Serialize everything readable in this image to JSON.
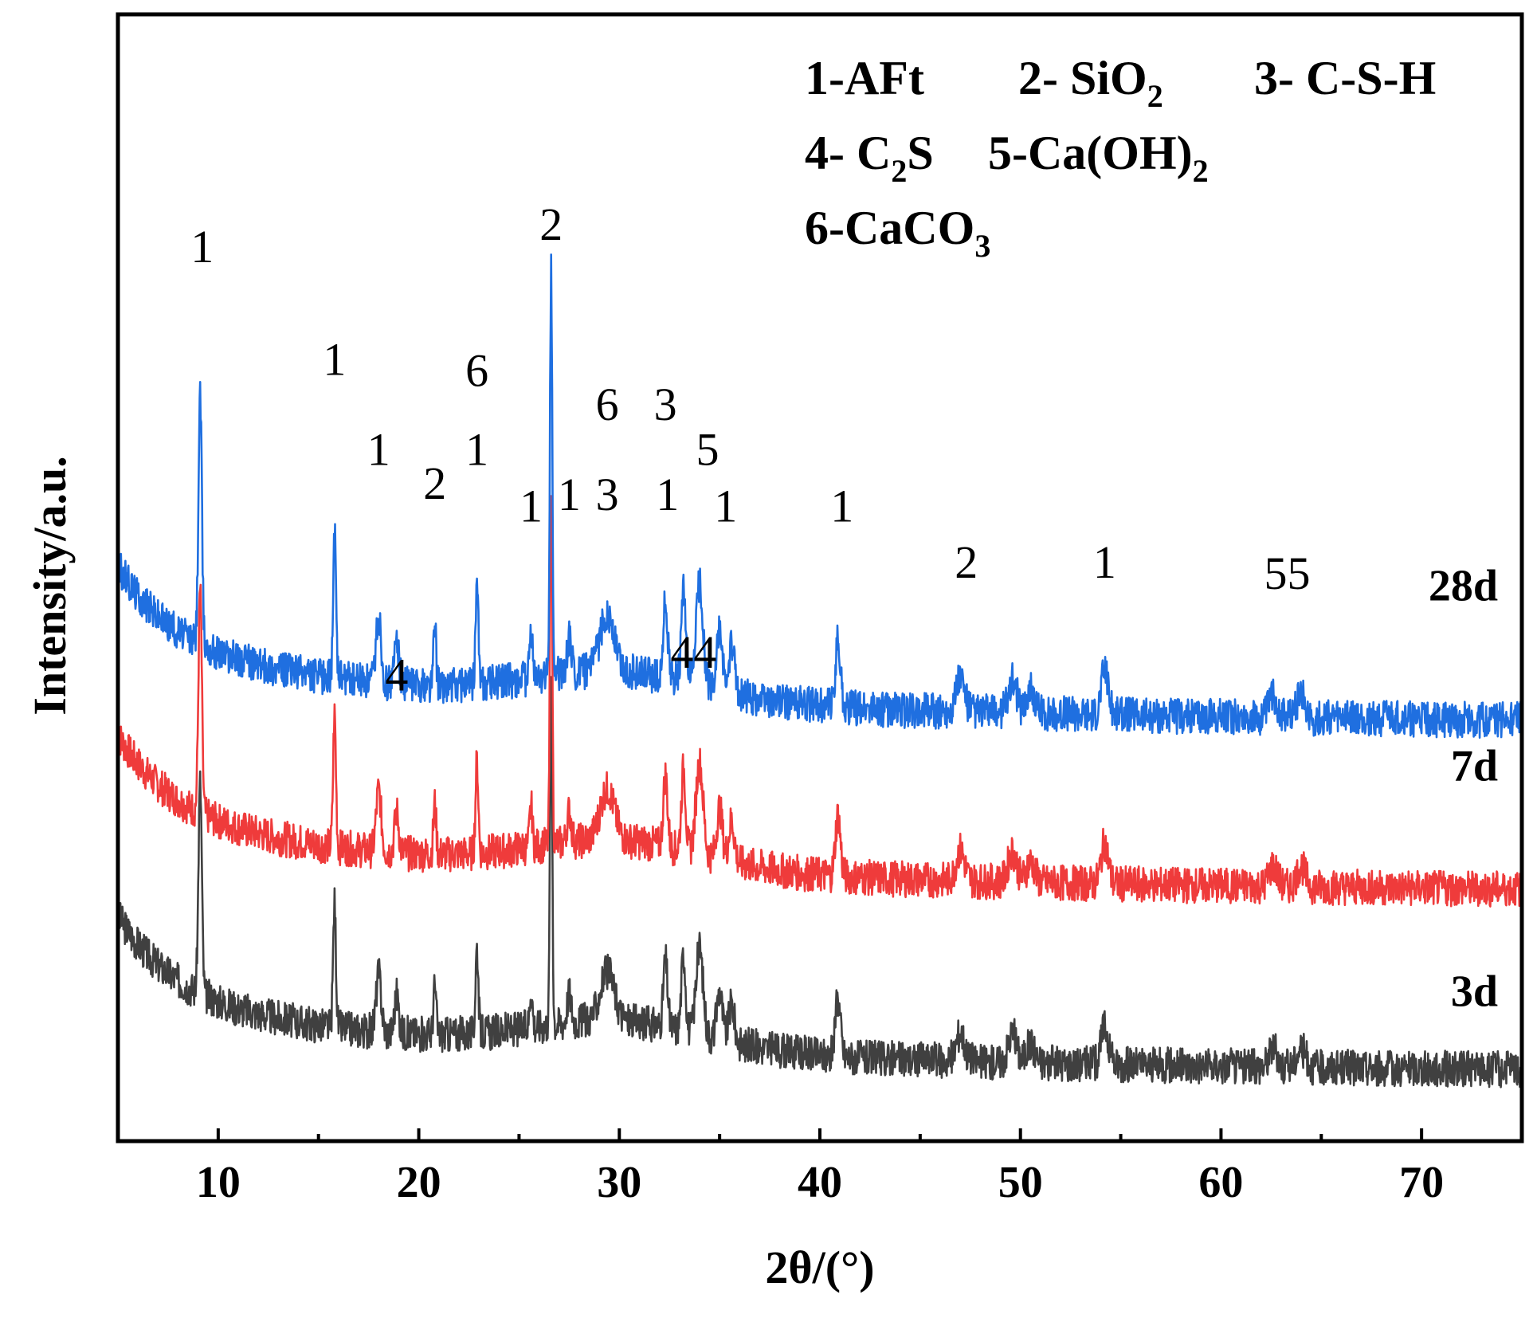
{
  "chart_data": {
    "type": "line",
    "title": "",
    "xlabel": "2θ/(°)",
    "ylabel": "Intensity/a.u.",
    "xlim": [
      5,
      75
    ],
    "ylim": [
      0,
      100
    ],
    "y_ticks_visible": false,
    "x_ticks": [
      10,
      20,
      30,
      40,
      50,
      60,
      70
    ],
    "x_tick_labels": [
      "10",
      "20",
      "30",
      "40",
      "50",
      "60",
      "70"
    ],
    "grid": false,
    "legend_position": "top-right",
    "legend": [
      {
        "num": "1",
        "sep": "-",
        "phase": "AFt"
      },
      {
        "num": "2",
        "sep": "- ",
        "phase": "SiO",
        "sub": "2"
      },
      {
        "num": "3",
        "sep": "- ",
        "phase": "C-S-H"
      },
      {
        "num": "4",
        "sep": "- ",
        "phase": "C",
        "sub": "2",
        "after": "S"
      },
      {
        "num": "5",
        "sep": "-",
        "phase": "Ca(OH)",
        "sub": "2"
      },
      {
        "num": "6",
        "sep": "-",
        "phase": "CaCO",
        "sub": "3"
      }
    ],
    "background_peaks": [
      {
        "x": 9.1,
        "h": 22,
        "w": 0.12
      },
      {
        "x": 15.8,
        "h": 13,
        "w": 0.1
      },
      {
        "x": 18.0,
        "h": 6,
        "w": 0.18
      },
      {
        "x": 18.9,
        "h": 4,
        "w": 0.15
      },
      {
        "x": 20.8,
        "h": 5,
        "w": 0.1
      },
      {
        "x": 22.9,
        "h": 9,
        "w": 0.1
      },
      {
        "x": 25.6,
        "h": 4,
        "w": 0.1
      },
      {
        "x": 26.6,
        "h": 36,
        "w": 0.08
      },
      {
        "x": 27.5,
        "h": 3,
        "w": 0.15
      },
      {
        "x": 29.4,
        "h": 5,
        "w": 0.5
      },
      {
        "x": 32.3,
        "h": 7,
        "w": 0.15
      },
      {
        "x": 33.2,
        "h": 8,
        "w": 0.15
      },
      {
        "x": 34.0,
        "h": 9,
        "w": 0.25
      },
      {
        "x": 35.0,
        "h": 5,
        "w": 0.2
      },
      {
        "x": 35.6,
        "h": 4,
        "w": 0.2
      },
      {
        "x": 40.9,
        "h": 6,
        "w": 0.18
      },
      {
        "x": 47.0,
        "h": 3,
        "w": 0.3
      },
      {
        "x": 49.6,
        "h": 3,
        "w": 0.3
      },
      {
        "x": 50.5,
        "h": 2,
        "w": 0.3
      },
      {
        "x": 54.2,
        "h": 4,
        "w": 0.25
      },
      {
        "x": 62.6,
        "h": 2,
        "w": 0.3
      },
      {
        "x": 64.0,
        "h": 2,
        "w": 0.3
      }
    ],
    "series": [
      {
        "name": "3d",
        "color": "#404040",
        "offset": 6,
        "scale": 0.85,
        "seed": 3
      },
      {
        "name": "7d",
        "color": "#ef3b3b",
        "offset": 22,
        "scale": 0.9,
        "seed": 7
      },
      {
        "name": "28d",
        "color": "#1f6fe0",
        "offset": 37,
        "scale": 1.0,
        "seed": 28
      }
    ],
    "peak_labels": [
      {
        "x": 9.2,
        "y": 78,
        "text": "1"
      },
      {
        "x": 15.8,
        "y": 68,
        "text": "1"
      },
      {
        "x": 18.0,
        "y": 60,
        "text": "1"
      },
      {
        "x": 20.8,
        "y": 57,
        "text": "2"
      },
      {
        "x": 22.9,
        "y": 67,
        "text": "6"
      },
      {
        "x": 22.9,
        "y": 60,
        "text": "1"
      },
      {
        "x": 25.6,
        "y": 55,
        "text": "1"
      },
      {
        "x": 26.6,
        "y": 80,
        "text": "2"
      },
      {
        "x": 27.5,
        "y": 56,
        "text": "1"
      },
      {
        "x": 29.4,
        "y": 64,
        "text": "6"
      },
      {
        "x": 29.4,
        "y": 56,
        "text": "3"
      },
      {
        "x": 32.3,
        "y": 64,
        "text": "3"
      },
      {
        "x": 32.4,
        "y": 56,
        "text": "1"
      },
      {
        "x": 34.4,
        "y": 60,
        "text": "5"
      },
      {
        "x": 35.3,
        "y": 55,
        "text": "1"
      },
      {
        "x": 41.1,
        "y": 55,
        "text": "1"
      },
      {
        "x": 47.3,
        "y": 50,
        "text": "2"
      },
      {
        "x": 54.2,
        "y": 50,
        "text": "1"
      },
      {
        "x": 63.3,
        "y": 49,
        "text": "55"
      },
      {
        "x": 18.9,
        "y": 40,
        "text": "4"
      },
      {
        "x": 33.7,
        "y": 42,
        "text": "44"
      }
    ],
    "series_labels": [
      {
        "text": "28d",
        "y": 48
      },
      {
        "text": "7d",
        "y": 32
      },
      {
        "text": "3d",
        "y": 12
      }
    ]
  }
}
